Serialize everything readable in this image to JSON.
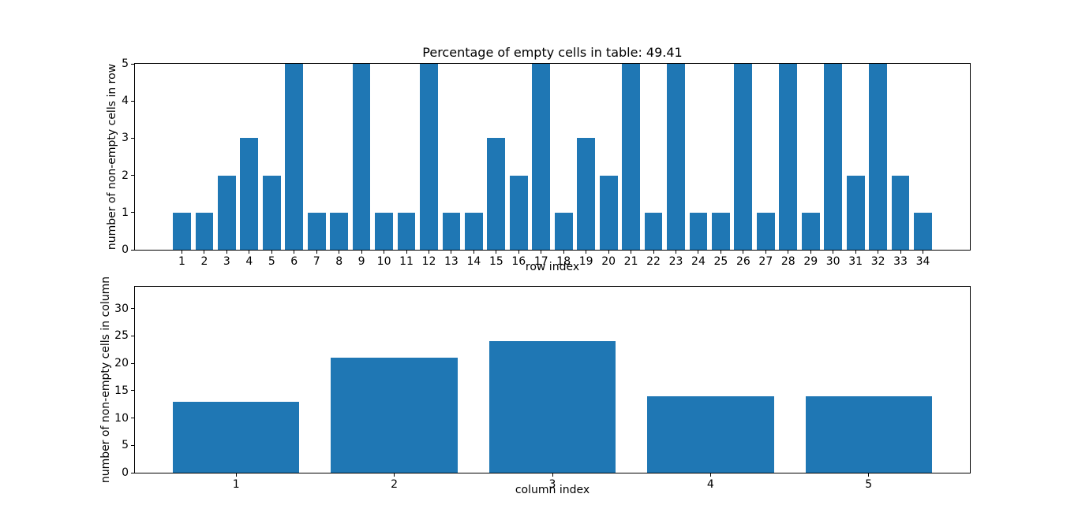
{
  "figure": {
    "background": "#ffffff",
    "axis_color": "#000000",
    "text_color": "#000000"
  },
  "chart_data": [
    {
      "type": "bar",
      "title": "Percentage of empty cells in table: 49.41",
      "xlabel": "row index",
      "ylabel": "number of non-empty cells in row",
      "categories": [
        "1",
        "2",
        "3",
        "4",
        "5",
        "6",
        "7",
        "8",
        "9",
        "10",
        "11",
        "12",
        "13",
        "14",
        "15",
        "16",
        "17",
        "18",
        "19",
        "20",
        "21",
        "22",
        "23",
        "24",
        "25",
        "26",
        "27",
        "28",
        "29",
        "30",
        "31",
        "32",
        "33",
        "34"
      ],
      "values": [
        1,
        1,
        2,
        3,
        2,
        5,
        1,
        1,
        5,
        1,
        1,
        5,
        1,
        1,
        3,
        2,
        5,
        1,
        3,
        2,
        5,
        1,
        5,
        1,
        1,
        5,
        1,
        5,
        1,
        5,
        2,
        5,
        2,
        1
      ],
      "yticks": [
        0,
        1,
        2,
        3,
        4,
        5
      ],
      "ylim": [
        0,
        5
      ],
      "xlim": [
        -1.09,
        36.09
      ],
      "bar_width": 0.8,
      "bar_color": "#1f77b4",
      "grid": false,
      "legend": null
    },
    {
      "type": "bar",
      "title": "",
      "xlabel": "column index",
      "ylabel": "number of non-empty cells in column",
      "categories": [
        "1",
        "2",
        "3",
        "4",
        "5"
      ],
      "values": [
        13,
        21,
        24,
        14,
        14
      ],
      "yticks": [
        0,
        5,
        10,
        15,
        20,
        25,
        30
      ],
      "ylim": [
        0,
        34
      ],
      "xlim": [
        0.36,
        5.64
      ],
      "bar_width": 0.8,
      "bar_color": "#1f77b4",
      "grid": false,
      "legend": null
    }
  ]
}
